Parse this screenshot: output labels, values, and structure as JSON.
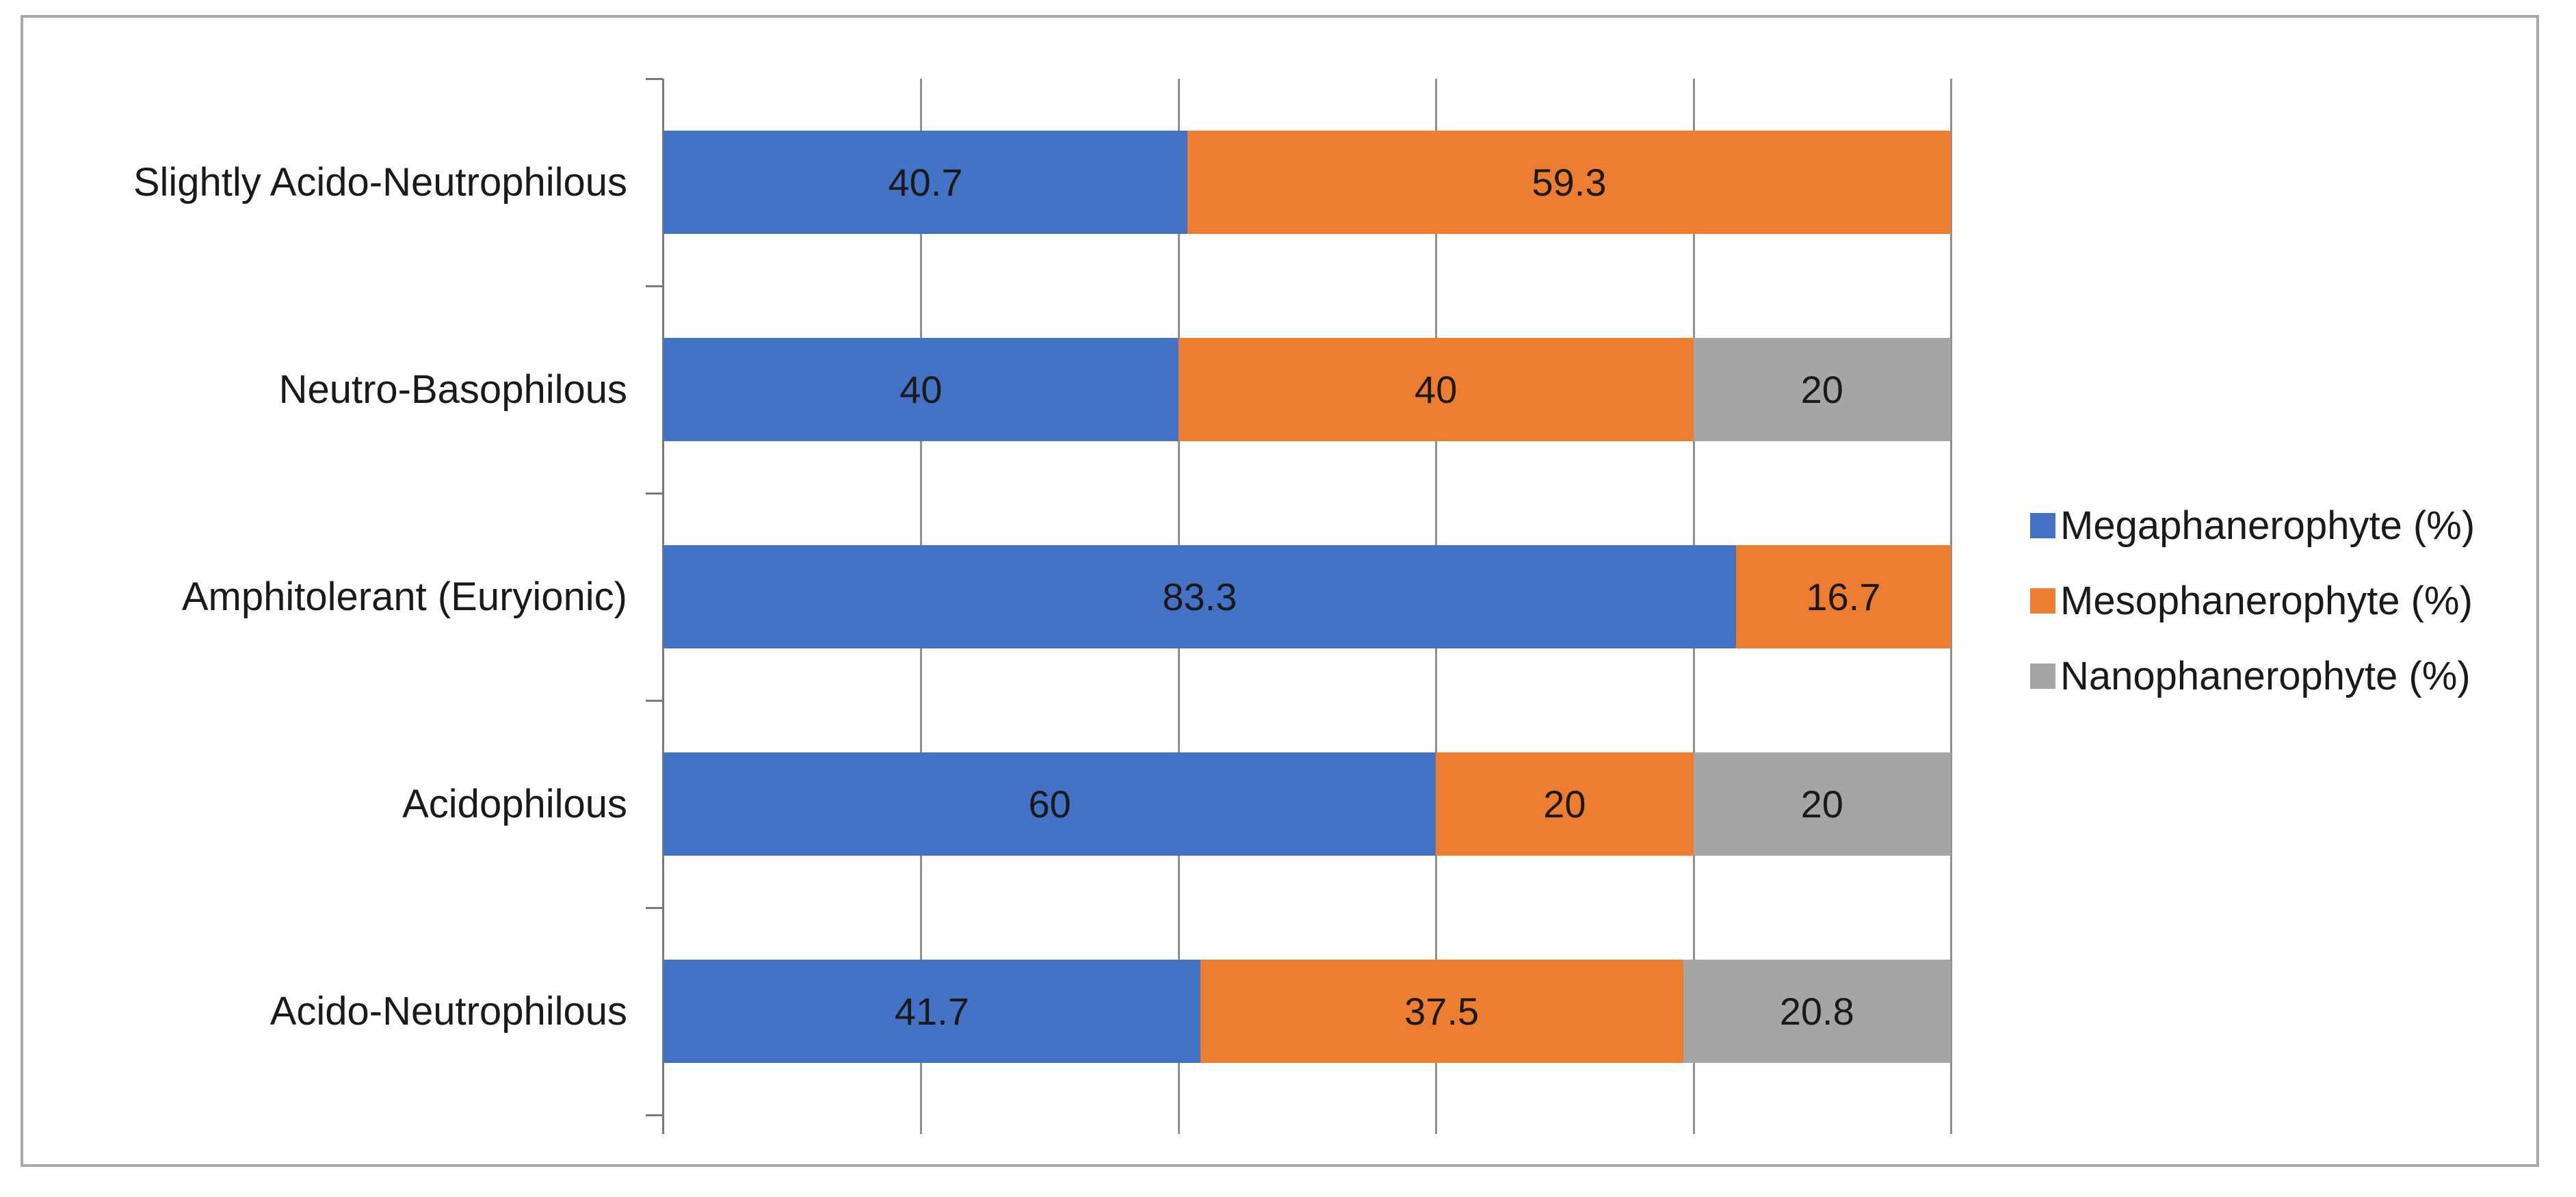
{
  "chart_data": {
    "type": "bar",
    "orientation": "horizontal",
    "stacked": true,
    "title": "",
    "xlabel": "",
    "ylabel": "",
    "xlim": [
      0,
      100
    ],
    "gridline_interval": 20,
    "grid": true,
    "legend_position": "right",
    "data_labels": true,
    "categories": [
      "Slightly Acido-Neutrophilous",
      "Neutro-Basophilous",
      "Amphitolerant (Euryionic)",
      "Acidophilous",
      "Acido-Neutrophilous"
    ],
    "series": [
      {
        "name": "Megaphanerophyte (%)",
        "color": "#4472C4",
        "values": [
          40.7,
          40,
          83.3,
          60,
          41.7
        ]
      },
      {
        "name": "Mesophanerophyte (%)",
        "color": "#ED7D31",
        "values": [
          59.3,
          40,
          16.7,
          20,
          37.5
        ]
      },
      {
        "name": "Nanophanerophyte (%)",
        "color": "#A5A5A5",
        "values": [
          0,
          20,
          0,
          20,
          20.8
        ]
      }
    ],
    "colors": {
      "axis": "#7a7a7a",
      "gridline": "#8f8f8f",
      "frame_border": "#a6a6a6",
      "label_text": "#1a1a1a"
    }
  }
}
